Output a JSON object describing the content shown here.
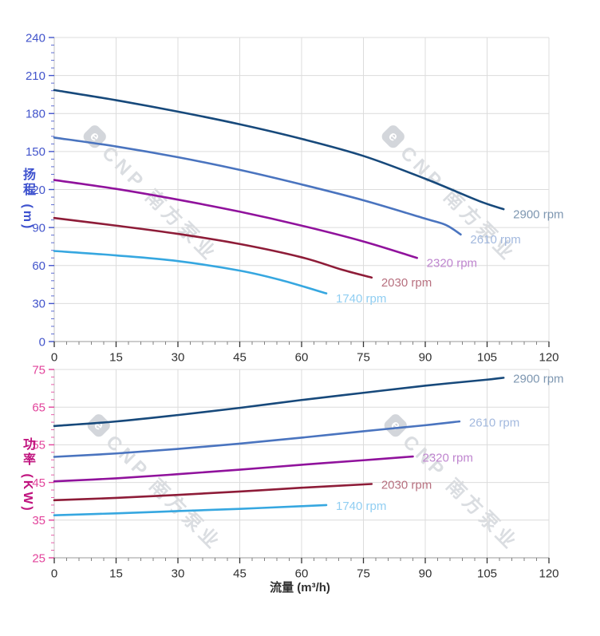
{
  "watermark": {
    "logo_letter": "e",
    "text": "CNP 南方泵业"
  },
  "titles": {
    "head_y_axis": "扬程 (m)",
    "power_y_axis": "功率 (KW)",
    "flow_x_axis": "流量 (m³/h)"
  },
  "chart_data": [
    {
      "type": "line",
      "id": "head-chart",
      "grid": true,
      "legend_position": "end-of-line",
      "x_axis": {
        "title": "流量 (m³/h)",
        "lim": [
          0,
          120
        ],
        "ticks": [
          0,
          15,
          30,
          45,
          60,
          75,
          90,
          105,
          120
        ],
        "minor_step": 3,
        "number_color": "#303030"
      },
      "y_axis": {
        "title": "扬程 (m)",
        "lim": [
          0,
          240
        ],
        "ticks": [
          0,
          30,
          60,
          90,
          120,
          150,
          180,
          210,
          240
        ],
        "minor_step": 6,
        "number_color": "#4254cb",
        "title_color": "#3d51ce"
      },
      "series": [
        {
          "name": "2900 rpm",
          "color": "#17497b",
          "label_color": "#7e97b1",
          "points": [
            [
              0,
              198.5
            ],
            [
              15,
              190.5
            ],
            [
              30,
              181.5
            ],
            [
              45,
              171.5
            ],
            [
              60,
              160
            ],
            [
              75,
              146.5
            ],
            [
              90,
              128.5
            ],
            [
              103,
              111
            ],
            [
              109,
              104.5
            ]
          ]
        },
        {
          "name": "2610 rpm",
          "color": "#4a74bf",
          "label_color": "#a3b9de",
          "points": [
            [
              0,
              161
            ],
            [
              15,
              154
            ],
            [
              30,
              145.5
            ],
            [
              45,
              135.5
            ],
            [
              60,
              124
            ],
            [
              75,
              111.5
            ],
            [
              90,
              97
            ],
            [
              95,
              92
            ],
            [
              98.6,
              84.5
            ]
          ]
        },
        {
          "name": "2320 rpm",
          "color": "#90129c",
          "label_color": "#bf85cf",
          "points": [
            [
              0,
              127.5
            ],
            [
              15,
              120.5
            ],
            [
              30,
              112
            ],
            [
              45,
              102.5
            ],
            [
              60,
              91.5
            ],
            [
              75,
              79
            ],
            [
              88,
              66
            ]
          ]
        },
        {
          "name": "2030 rpm",
          "color": "#8e1c38",
          "label_color": "#b7707f",
          "points": [
            [
              0,
              97.5
            ],
            [
              15,
              91.5
            ],
            [
              30,
              85
            ],
            [
              45,
              77
            ],
            [
              60,
              66.5
            ],
            [
              70,
              56.5
            ],
            [
              77,
              50.5
            ]
          ]
        },
        {
          "name": "1740 rpm",
          "color": "#36a7e0",
          "label_color": "#90cef2",
          "points": [
            [
              0,
              71.5
            ],
            [
              15,
              68
            ],
            [
              30,
              63.5
            ],
            [
              45,
              56
            ],
            [
              55,
              48.5
            ],
            [
              66,
              38
            ]
          ]
        }
      ]
    },
    {
      "type": "line",
      "id": "power-chart",
      "grid": true,
      "legend_position": "end-of-line",
      "x_axis": {
        "title": "流量 (m³/h)",
        "lim": [
          0,
          120
        ],
        "ticks": [
          0,
          15,
          30,
          45,
          60,
          75,
          90,
          105,
          120
        ],
        "minor_step": 3,
        "number_color": "#303030"
      },
      "y_axis": {
        "title": "功率 (KW)",
        "lim": [
          25,
          75
        ],
        "ticks": [
          25,
          35,
          45,
          55,
          65,
          75
        ],
        "minor_step": 2,
        "number_color": "#e2439b",
        "title_color": "#c0137e"
      },
      "series": [
        {
          "name": "2900 rpm",
          "color": "#17497b",
          "label_color": "#7e97b1",
          "points": [
            [
              0,
              60
            ],
            [
              15,
              61.2
            ],
            [
              30,
              62.9
            ],
            [
              45,
              64.8
            ],
            [
              60,
              66.9
            ],
            [
              75,
              68.8
            ],
            [
              90,
              70.7
            ],
            [
              105,
              72.3
            ],
            [
              109,
              72.8
            ]
          ]
        },
        {
          "name": "2610 rpm",
          "color": "#4a74bf",
          "label_color": "#a3b9de",
          "points": [
            [
              0,
              51.8
            ],
            [
              15,
              52.7
            ],
            [
              30,
              53.9
            ],
            [
              45,
              55.3
            ],
            [
              60,
              56.9
            ],
            [
              75,
              58.6
            ],
            [
              90,
              60.2
            ],
            [
              98.3,
              61.2
            ]
          ]
        },
        {
          "name": "2320 rpm",
          "color": "#90129c",
          "label_color": "#bf85cf",
          "points": [
            [
              0,
              45.3
            ],
            [
              15,
              46.1
            ],
            [
              30,
              47.2
            ],
            [
              45,
              48.4
            ],
            [
              60,
              49.7
            ],
            [
              75,
              50.9
            ],
            [
              87,
              51.9
            ]
          ]
        },
        {
          "name": "2030 rpm",
          "color": "#8e1c38",
          "label_color": "#b7707f",
          "points": [
            [
              0,
              40.3
            ],
            [
              15,
              40.9
            ],
            [
              30,
              41.7
            ],
            [
              45,
              42.6
            ],
            [
              60,
              43.6
            ],
            [
              77,
              44.6
            ]
          ]
        },
        {
          "name": "1740 rpm",
          "color": "#36a7e0",
          "label_color": "#90cef2",
          "points": [
            [
              0,
              36.3
            ],
            [
              15,
              36.8
            ],
            [
              30,
              37.4
            ],
            [
              45,
              38
            ],
            [
              60,
              38.7
            ],
            [
              66,
              39
            ]
          ]
        }
      ]
    }
  ]
}
